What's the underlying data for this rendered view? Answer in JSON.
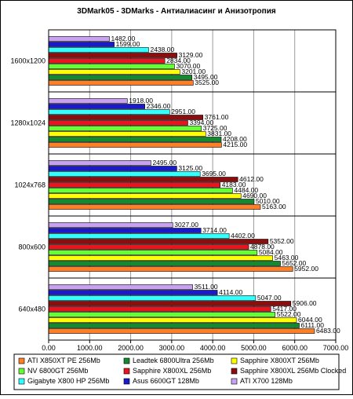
{
  "chart_data": {
    "type": "bar",
    "orientation": "horizontal",
    "title": "3DMark05 - 3DMarks - Антиалиасинг и Анизотропия",
    "xlim": [
      0,
      7000
    ],
    "x_ticks": [
      "0.00",
      "1000.00",
      "2000.00",
      "3000.00",
      "4000.00",
      "5000.00",
      "6000.00",
      "7000.00"
    ],
    "grid": true,
    "legend_position": "bottom",
    "legend_columns": 3,
    "categories": [
      "1600x1200",
      "1280x1024",
      "1024x768",
      "800x600",
      "640x480"
    ],
    "series": [
      {
        "name": "ATI X850XT PE 256Mb",
        "color": "#ff7f27",
        "values": [
          3525,
          4215,
          5163,
          5952,
          6483
        ],
        "labels": [
          "3525.00",
          "4215.00",
          "5163.00",
          "5952.00",
          "6483.00"
        ]
      },
      {
        "name": "Leadtek 6800Ultra 256Mb",
        "color": "#138a2e",
        "values": [
          3495,
          4208,
          5010,
          5652,
          6111
        ],
        "labels": [
          "3495.00",
          "4208.00",
          "5010.00",
          "5652.00",
          "6111.00"
        ]
      },
      {
        "name": "Sapphire X800XT 256Mb",
        "color": "#ffff00",
        "values": [
          3201,
          3831,
          4690,
          5463,
          6044
        ],
        "labels": [
          "3201.00",
          "3831.00",
          "4690.00",
          "5463.00",
          "6044.00"
        ]
      },
      {
        "name": "NV 6800GT 256Mb",
        "color": "#66ff33",
        "values": [
          3070,
          3725,
          4484,
          5084,
          5522
        ],
        "labels": [
          "3070.00",
          "3725.00",
          "4484.00",
          "5084.00",
          "5522.00"
        ]
      },
      {
        "name": "Sapphire X800XL 256Mb",
        "color": "#e8141e",
        "values": [
          2834,
          3394,
          4183,
          4878,
          5417
        ],
        "labels": [
          "2834.00",
          "3394.00",
          "4183.00",
          "4878.00",
          "5417.00"
        ]
      },
      {
        "name": "Sapphire X800XL 256Mb Clocked",
        "color": "#8b0e0e",
        "values": [
          3129,
          3761,
          4612,
          5352,
          5906
        ],
        "labels": [
          "3129.00",
          "3761.00",
          "4612.00",
          "5352.00",
          "5906.00"
        ]
      },
      {
        "name": "Gigabyte X800 HP 256Mb",
        "color": "#33ffff",
        "values": [
          2438,
          2951,
          3695,
          4402,
          5047
        ],
        "labels": [
          "2438.00",
          "2951.00",
          "3695.00",
          "4402.00",
          "5047.00"
        ]
      },
      {
        "name": "Asus 6600GT 128Mb",
        "color": "#1a1acc",
        "values": [
          1599,
          2346,
          3125,
          3714,
          4114
        ],
        "labels": [
          "1599.00",
          "2346.00",
          "3125.00",
          "3714.00",
          "4114.00"
        ]
      },
      {
        "name": "ATI X700 128Mb",
        "color": "#c8a2f0",
        "values": [
          1482,
          1918,
          2495,
          3027,
          3511
        ],
        "labels": [
          "1482.00",
          "1918.00",
          "2495.00",
          "3027.00",
          "3511.00"
        ]
      }
    ],
    "legend_order": [
      0,
      1,
      2,
      3,
      4,
      5,
      6,
      7,
      8
    ]
  }
}
